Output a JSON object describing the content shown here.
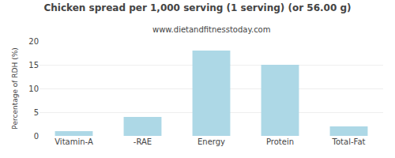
{
  "chart_data": {
    "type": "bar",
    "title": "Chicken spread per 1,000 serving (1 serving) (or 56.00 g)",
    "subtitle": "www.dietandfitnesstoday.com",
    "categories": [
      "Vitamin-A",
      "-RAE",
      "Energy",
      "Protein",
      "Total-Fat"
    ],
    "values": [
      1,
      4,
      18,
      15,
      2
    ],
    "color": "#add8e6",
    "ylabel": "Percentage of RDH (%)",
    "ylim": [
      0,
      20
    ],
    "yticks": [
      0,
      5,
      10,
      15,
      20
    ],
    "grid": true
  }
}
